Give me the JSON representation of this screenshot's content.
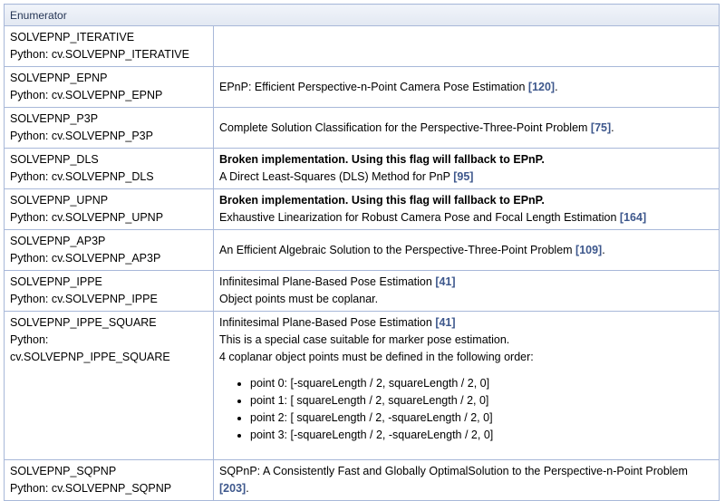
{
  "header": "Enumerator",
  "rows": [
    {
      "name": "SOLVEPNP_ITERATIVE",
      "python": "Python: cv.SOLVEPNP_ITERATIVE",
      "desc": []
    },
    {
      "name": "SOLVEPNP_EPNP",
      "python": "Python: cv.SOLVEPNP_EPNP",
      "desc": [
        {
          "text": "EPnP: Efficient Perspective-n-Point Camera Pose Estimation ",
          "ref": "[120]",
          "after": "."
        }
      ]
    },
    {
      "name": "SOLVEPNP_P3P",
      "python": "Python: cv.SOLVEPNP_P3P",
      "desc": [
        {
          "text": "Complete Solution Classification for the Perspective-Three-Point Problem ",
          "ref": "[75]",
          "after": "."
        }
      ]
    },
    {
      "name": "SOLVEPNP_DLS",
      "python": "Python: cv.SOLVEPNP_DLS",
      "bold": "Broken implementation. Using this flag will fallback to EPnP.",
      "desc": [
        {
          "text": "A Direct Least-Squares (DLS) Method for PnP ",
          "ref": "[95]",
          "after": ""
        }
      ]
    },
    {
      "name": "SOLVEPNP_UPNP",
      "python": "Python: cv.SOLVEPNP_UPNP",
      "bold": "Broken implementation. Using this flag will fallback to EPnP.",
      "desc": [
        {
          "text": "Exhaustive Linearization for Robust Camera Pose and Focal Length Estimation ",
          "ref": "[164]",
          "after": ""
        }
      ]
    },
    {
      "name": "SOLVEPNP_AP3P",
      "python": "Python: cv.SOLVEPNP_AP3P",
      "desc": [
        {
          "text": "An Efficient Algebraic Solution to the Perspective-Three-Point Problem ",
          "ref": "[109]",
          "after": "."
        }
      ]
    },
    {
      "name": "SOLVEPNP_IPPE",
      "python": "Python: cv.SOLVEPNP_IPPE",
      "desc": [
        {
          "text": "Infinitesimal Plane-Based Pose Estimation ",
          "ref": "[41]",
          "after": ""
        },
        {
          "text": "Object points must be coplanar.",
          "ref": "",
          "after": ""
        }
      ]
    },
    {
      "name": "SOLVEPNP_IPPE_SQUARE",
      "python": "Python: cv.SOLVEPNP_IPPE_SQUARE",
      "desc": [
        {
          "text": "Infinitesimal Plane-Based Pose Estimation ",
          "ref": "[41]",
          "after": ""
        },
        {
          "text": "This is a special case suitable for marker pose estimation.",
          "ref": "",
          "after": ""
        },
        {
          "text": "4 coplanar object points must be defined in the following order:",
          "ref": "",
          "after": ""
        }
      ],
      "list": [
        "point 0: [-squareLength / 2, squareLength / 2, 0]",
        "point 1: [ squareLength / 2, squareLength / 2, 0]",
        "point 2: [ squareLength / 2, -squareLength / 2, 0]",
        "point 3: [-squareLength / 2, -squareLength / 2, 0]"
      ]
    },
    {
      "name": "SOLVEPNP_SQPNP",
      "python": "Python: cv.SOLVEPNP_SQPNP",
      "desc": [
        {
          "text": "SQPnP: A Consistently Fast and Globally OptimalSolution to the Perspective-n-Point Problem ",
          "ref": "[203]",
          "after": "."
        }
      ]
    }
  ]
}
